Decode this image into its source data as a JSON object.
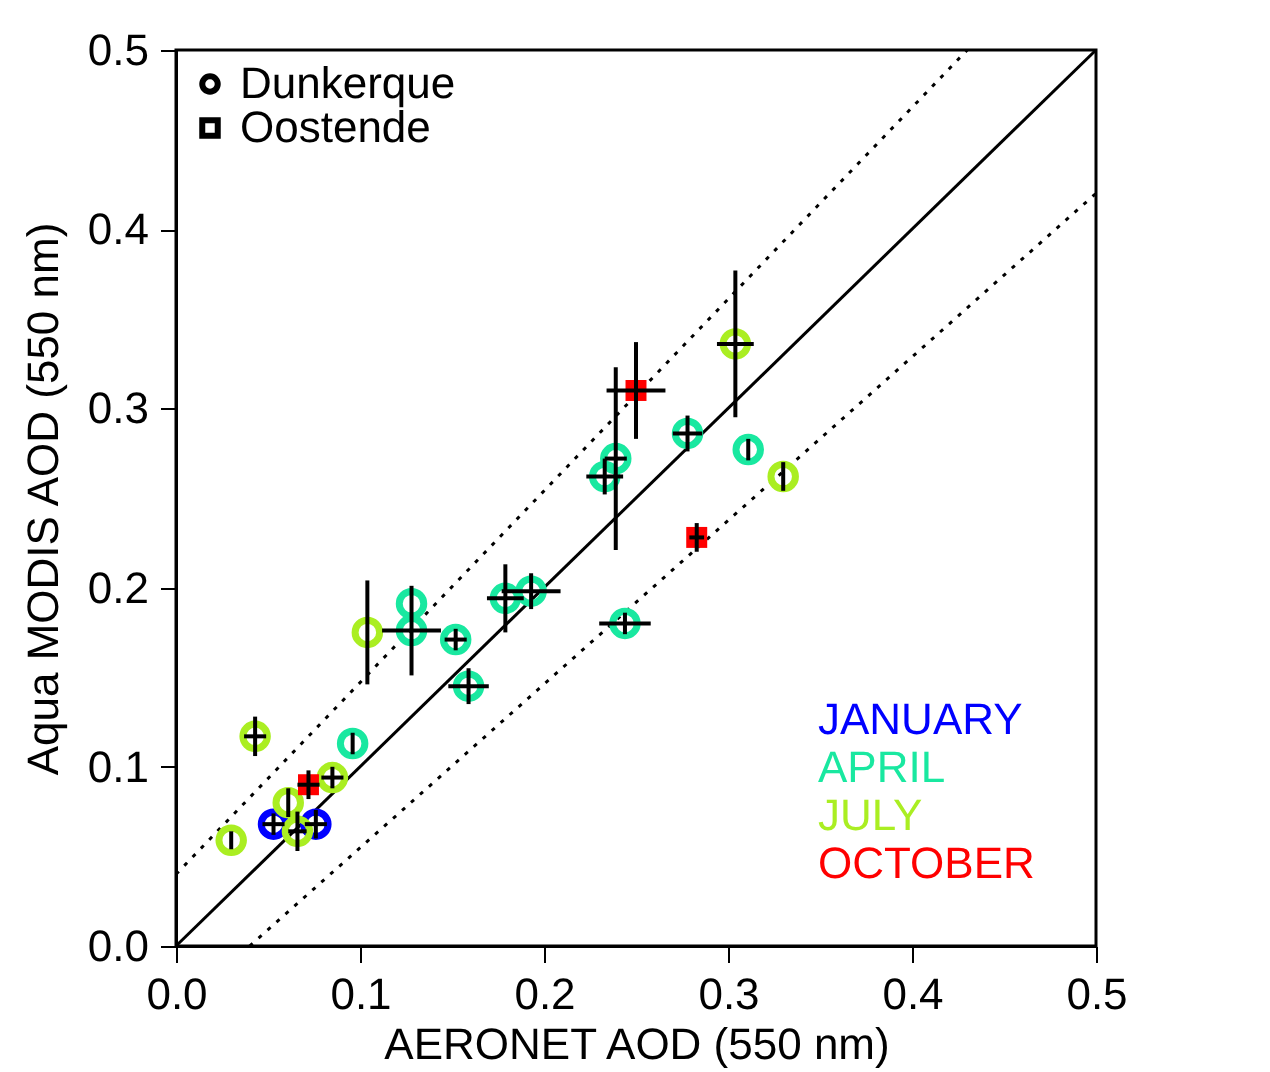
{
  "chart_data": {
    "type": "scatter",
    "xlabel": "AERONET AOD (550 nm)",
    "ylabel": "Aqua MODIS AOD (550 nm)",
    "xlim": [
      0,
      0.5
    ],
    "ylim": [
      0,
      0.5
    ],
    "xticks": [
      {
        "value": 0,
        "label": "0.0"
      },
      0.1,
      0.2,
      0.3,
      0.4,
      0.5
    ],
    "yticks": [
      {
        "value": 0,
        "label": "0.0"
      },
      0.1,
      0.2,
      0.3,
      0.4,
      0.5
    ],
    "grid": false,
    "legend": "bottom right",
    "annotations": [
      "Dunkerque",
      "Oostende"
    ],
    "series": [
      {
        "type": "line",
        "color": "#000000",
        "line_style": "solid",
        "x": [
          0,
          0.5
        ],
        "values": [
          0,
          0.5
        ]
      },
      {
        "type": "line",
        "color": "#000000",
        "line_style": "dotted",
        "x": [
          0,
          0.43
        ],
        "values": [
          0.04,
          0.5
        ]
      },
      {
        "type": "line",
        "color": "#000000",
        "line_style": "dotted",
        "x": [
          0.04,
          0.5
        ],
        "values": [
          0,
          0.42
        ]
      },
      {
        "name": "JANUARY",
        "color": "#0000ff",
        "marker": "circle",
        "x": [
          0.053,
          0.076
        ],
        "values": [
          0.068,
          0.068
        ],
        "errors": [
          0.006,
          0.008
        ],
        "xerrors": [
          0.006,
          0.006
        ]
      },
      {
        "name": "APRIL",
        "color": "#19e8a0",
        "marker": "circle",
        "x": [
          0.096,
          0.128,
          0.128,
          0.152,
          0.159,
          0.179,
          0.193,
          0.233,
          0.239,
          0.244,
          0.278,
          0.311
        ],
        "values": [
          0.113,
          0.191,
          0.176,
          0.171,
          0.145,
          0.194,
          0.198,
          0.262,
          0.272,
          0.18,
          0.286,
          0.277
        ],
        "errors": [
          0.006,
          null,
          0.025,
          0.006,
          0.01,
          0.019,
          0.01,
          0.01,
          0.051,
          0.006,
          0.01,
          0.006
        ],
        "xerrors": [
          null,
          null,
          0.016,
          0.006,
          0.011,
          0.01,
          0.016,
          0.01,
          0.006,
          0.014,
          0.008,
          null
        ]
      },
      {
        "name": "JULY",
        "color": "#aaee22",
        "marker": "circle",
        "x": [
          0.03,
          0.043,
          0.061,
          0.066,
          0.085,
          0.104,
          0.304,
          0.33
        ],
        "values": [
          0.059,
          0.117,
          0.08,
          0.064,
          0.094,
          0.175,
          0.336,
          0.262
        ],
        "errors": [
          0.005,
          0.011,
          0.008,
          0.011,
          0.006,
          0.029,
          0.041,
          0.008
        ],
        "xerrors": [
          null,
          0.006,
          null,
          0.005,
          0.006,
          null,
          0.01,
          null
        ]
      },
      {
        "name": "OCTOBER",
        "color": "#ff0000",
        "marker": "square",
        "x": [
          0.072,
          0.25,
          0.283
        ],
        "values": [
          0.09,
          0.31,
          0.228
        ],
        "errors": [
          0.008,
          0.027,
          0.008
        ],
        "xerrors": [
          0.006,
          0.016,
          0.004
        ]
      }
    ]
  }
}
